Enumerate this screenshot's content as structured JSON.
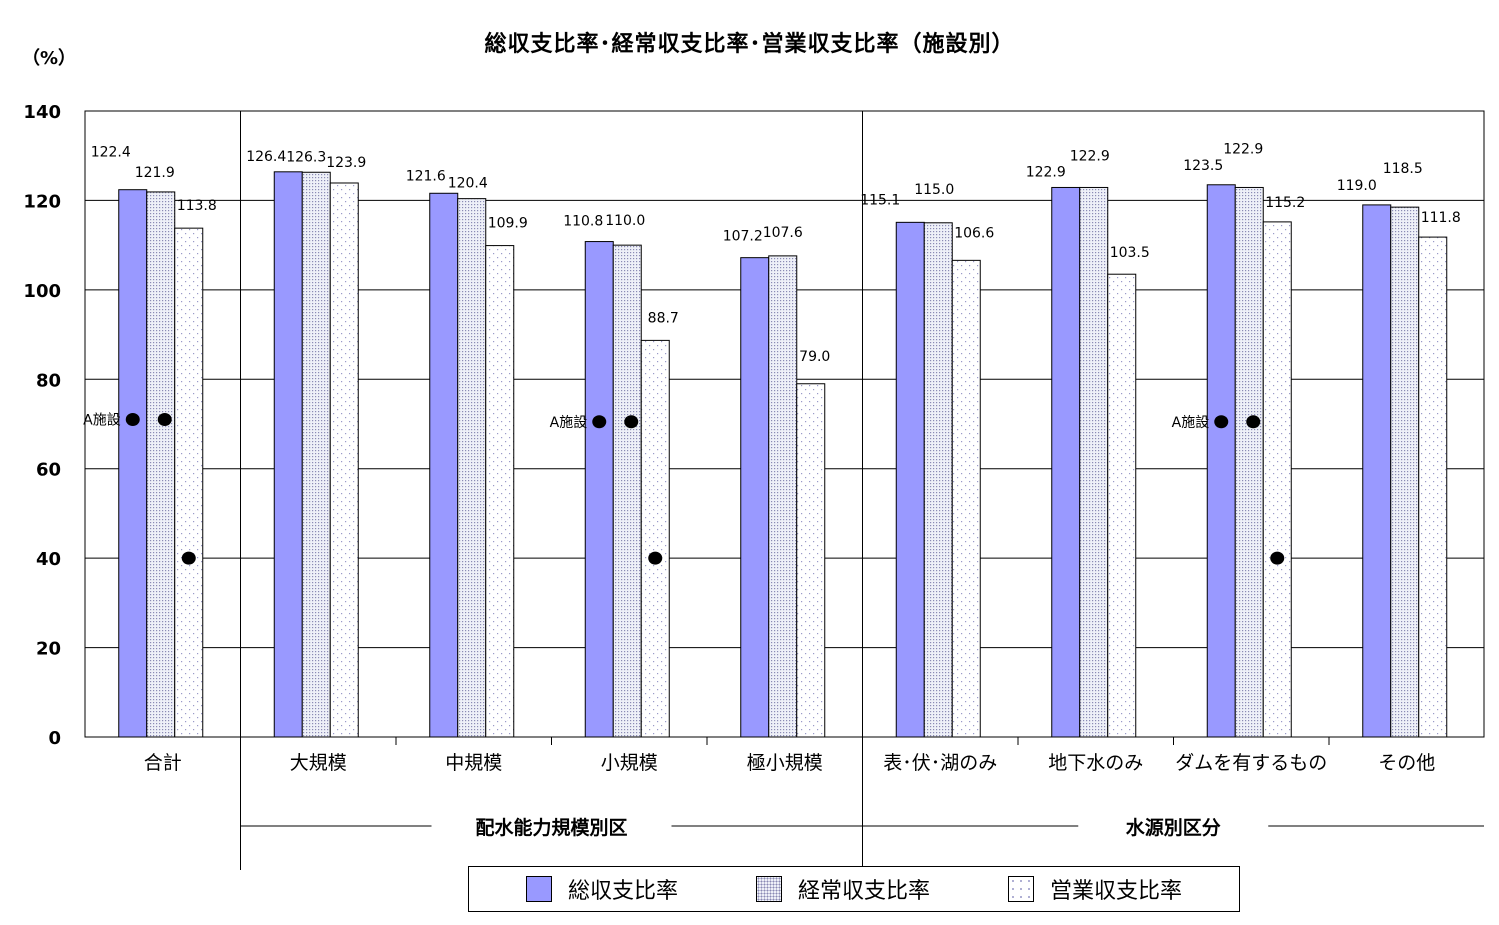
{
  "chart_data": {
    "type": "bar",
    "title": "総収支比率･経常収支比率･営業収支比率（施設別）",
    "ylabel": "（%）",
    "ylim": [
      0,
      140
    ],
    "yticks": [
      "0",
      "20",
      "40",
      "60",
      "80",
      "100",
      "120",
      "140"
    ],
    "categories": [
      "合計",
      "大規模",
      "中規模",
      "小規模",
      "極小規模",
      "表･伏･湖のみ",
      "地下水のみ",
      "ダムを有するもの",
      "その他"
    ],
    "series": [
      {
        "name": "総収支比率",
        "values": [
          122.4,
          126.4,
          121.6,
          110.8,
          107.2,
          115.1,
          122.9,
          123.5,
          119.0
        ],
        "labels": [
          "122.4",
          "126.4",
          "121.6",
          "110.8",
          "107.2",
          "115.1",
          "122.9",
          "123.5",
          "119.0"
        ]
      },
      {
        "name": "経常収支比率",
        "values": [
          121.9,
          126.3,
          120.4,
          110.0,
          107.6,
          115.0,
          122.9,
          122.9,
          118.5
        ],
        "labels": [
          "121.9",
          "126.3",
          "120.4",
          "110.0",
          "107.6",
          "115.0",
          "122.9",
          "122.9",
          "118.5"
        ]
      },
      {
        "name": "営業収支比率",
        "values": [
          113.8,
          123.9,
          109.9,
          88.7,
          79.0,
          106.6,
          103.5,
          115.2,
          111.8
        ],
        "labels": [
          "113.8",
          "123.9",
          "109.9",
          "88.7",
          "79.0",
          "106.6",
          "103.5",
          "115.2",
          "111.8"
        ]
      }
    ],
    "groups": [
      {
        "label": "配水能力規模別区",
        "categories": [
          "大規模",
          "中規模",
          "小規模",
          "極小規模"
        ]
      },
      {
        "label": "水源別区分",
        "categories": [
          "表･伏･湖のみ",
          "地下水のみ",
          "ダムを有するもの",
          "その他"
        ]
      }
    ],
    "markers": [
      {
        "category": "合計",
        "label": "A施設",
        "values": [
          71,
          71,
          40
        ]
      },
      {
        "category": "小規模",
        "label": "A施設",
        "values": [
          70.5,
          70.5,
          40
        ]
      },
      {
        "category": "ダムを有するもの",
        "label": "A施設",
        "values": [
          70.5,
          70.5,
          40
        ]
      }
    ],
    "grid": true,
    "legend": "bottom",
    "colors": [
      "#9999ff",
      "#e8eaf6",
      "#ffffff"
    ]
  }
}
